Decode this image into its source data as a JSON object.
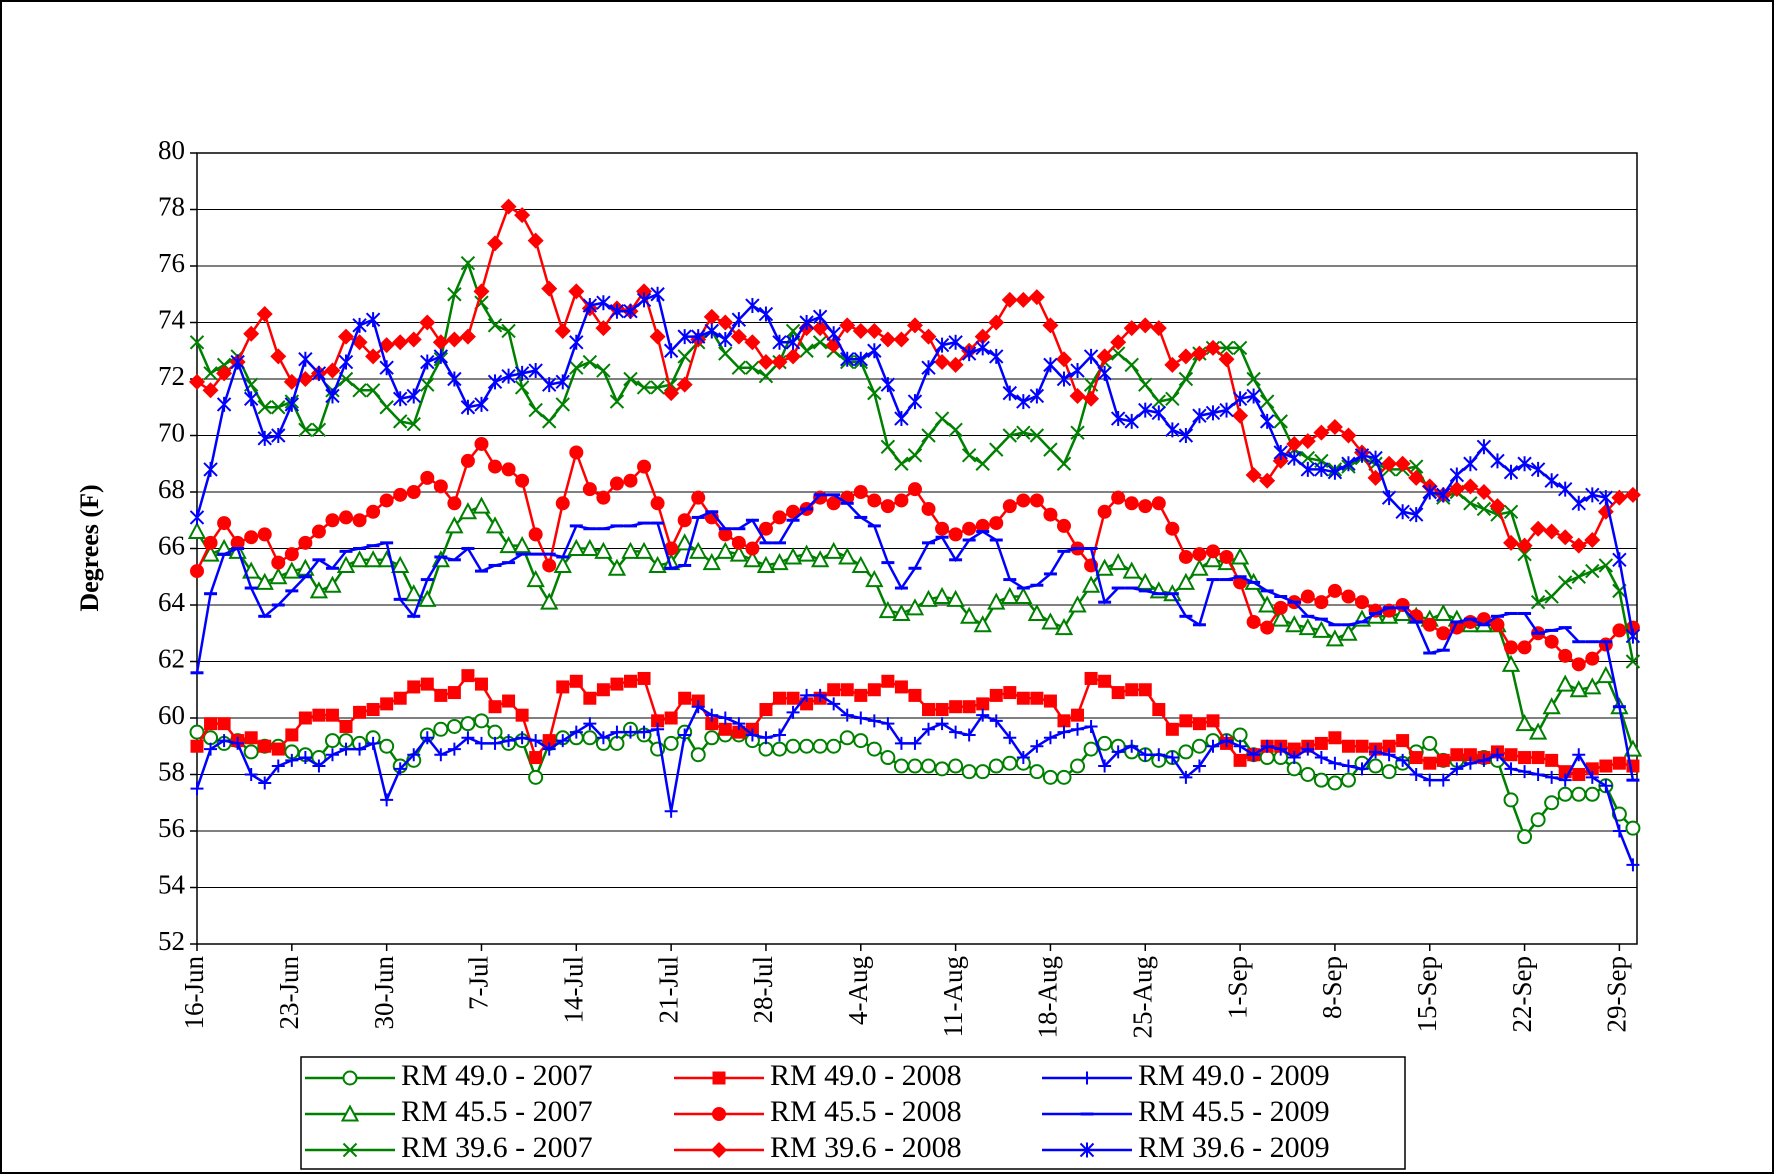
{
  "chart_data": {
    "type": "line",
    "ylabel": "Degrees (F)",
    "ylim": [
      52,
      80
    ],
    "yticks": [
      52,
      54,
      56,
      58,
      60,
      62,
      64,
      66,
      68,
      70,
      72,
      74,
      76,
      78,
      80
    ],
    "grid": true,
    "categories": [
      "16-Jun",
      null,
      null,
      null,
      null,
      null,
      null,
      "23-Jun",
      null,
      null,
      null,
      null,
      null,
      null,
      "30-Jun",
      null,
      null,
      null,
      null,
      null,
      null,
      "7-Jul",
      null,
      null,
      null,
      null,
      null,
      null,
      "14-Jul",
      null,
      null,
      null,
      null,
      null,
      null,
      "21-Jul",
      null,
      null,
      null,
      null,
      null,
      null,
      "28-Jul",
      null,
      null,
      null,
      null,
      null,
      null,
      "4-Aug",
      null,
      null,
      null,
      null,
      null,
      null,
      "11-Aug",
      null,
      null,
      null,
      null,
      null,
      null,
      "18-Aug",
      null,
      null,
      null,
      null,
      null,
      null,
      "25-Aug",
      null,
      null,
      null,
      null,
      null,
      null,
      "1-Sep",
      null,
      null,
      null,
      null,
      null,
      null,
      "8-Sep",
      null,
      null,
      null,
      null,
      null,
      null,
      "15-Sep",
      null,
      null,
      null,
      null,
      null,
      null,
      "22-Sep",
      null,
      null,
      null,
      null,
      null,
      null,
      "29-Sep",
      null
    ],
    "series": [
      {
        "name": "RM 49.0 - 2007",
        "color": "#008000",
        "marker": "circle-open",
        "values": [
          59.5,
          59.3,
          59.1,
          59.2,
          58.8,
          59.0,
          59.0,
          58.8,
          58.7,
          58.6,
          59.2,
          59.2,
          59.1,
          59.3,
          59.0,
          58.3,
          58.5,
          59.4,
          59.6,
          59.7,
          59.8,
          59.9,
          59.5,
          59.1,
          59.2,
          57.9,
          59.1,
          59.3,
          59.3,
          59.3,
          59.1,
          59.1,
          59.6,
          59.4,
          58.9,
          59.1,
          59.5,
          58.7,
          59.3,
          59.4,
          59.4,
          59.2,
          58.9,
          58.9,
          59.0,
          59.0,
          59.0,
          59.0,
          59.3,
          59.2,
          58.9,
          58.6,
          58.3,
          58.3,
          58.3,
          58.2,
          58.3,
          58.1,
          58.1,
          58.3,
          58.4,
          58.4,
          58.1,
          57.9,
          57.9,
          58.3,
          58.9,
          59.1,
          59.0,
          58.8,
          58.7,
          58.5,
          58.6,
          58.8,
          59.0,
          59.2,
          59.2,
          59.4,
          58.7,
          58.6,
          58.6,
          58.2,
          58.0,
          57.8,
          57.7,
          57.8,
          58.4,
          58.3,
          58.1,
          58.4,
          58.8,
          59.1,
          58.5,
          58.5,
          58.6,
          58.6,
          58.5,
          57.1,
          55.8,
          56.4,
          57.0,
          57.3,
          57.3,
          57.3,
          57.6,
          56.6,
          56.1
        ]
      },
      {
        "name": "RM 49.0 - 2008",
        "color": "#ff0000",
        "marker": "square",
        "values": [
          59.0,
          59.8,
          59.8,
          59.2,
          59.3,
          59.0,
          58.9,
          59.4,
          60.0,
          60.1,
          60.1,
          59.7,
          60.2,
          60.3,
          60.5,
          60.7,
          61.1,
          61.2,
          60.8,
          60.9,
          61.5,
          61.2,
          60.4,
          60.6,
          60.1,
          58.6,
          59.2,
          61.1,
          61.3,
          60.7,
          61.0,
          61.2,
          61.3,
          61.4,
          59.9,
          60.0,
          60.7,
          60.6,
          59.8,
          59.6,
          59.5,
          59.6,
          60.3,
          60.7,
          60.7,
          60.5,
          60.7,
          61.0,
          61.0,
          60.8,
          61.0,
          61.3,
          61.1,
          60.8,
          60.3,
          60.3,
          60.4,
          60.4,
          60.5,
          60.8,
          60.9,
          60.7,
          60.7,
          60.6,
          59.9,
          60.1,
          61.4,
          61.3,
          60.9,
          61.0,
          61.0,
          60.3,
          59.6,
          59.9,
          59.8,
          59.9,
          59.1,
          58.5,
          58.7,
          59.0,
          59.0,
          58.9,
          59.0,
          59.1,
          59.3,
          59.0,
          59.0,
          58.9,
          59.0,
          59.2,
          58.6,
          58.4,
          58.5,
          58.7,
          58.7,
          58.6,
          58.8,
          58.7,
          58.6,
          58.6,
          58.5,
          58.1,
          58.0,
          58.2,
          58.3,
          58.4,
          58.3
        ]
      },
      {
        "name": "RM 49.0 - 2009",
        "color": "#0000ff",
        "marker": "plus",
        "values": [
          57.5,
          58.9,
          59.2,
          59.1,
          58.0,
          57.7,
          58.3,
          58.5,
          58.6,
          58.3,
          58.7,
          58.9,
          58.9,
          59.1,
          57.1,
          58.2,
          58.7,
          59.3,
          58.7,
          58.9,
          59.3,
          59.1,
          59.1,
          59.2,
          59.3,
          59.2,
          58.9,
          59.2,
          59.5,
          59.8,
          59.3,
          59.5,
          59.5,
          59.5,
          59.6,
          56.7,
          59.4,
          60.4,
          60.1,
          60.0,
          59.8,
          59.4,
          59.3,
          59.4,
          60.2,
          60.8,
          60.8,
          60.5,
          60.1,
          60.0,
          59.9,
          59.8,
          59.1,
          59.1,
          59.6,
          59.8,
          59.5,
          59.4,
          60.1,
          59.9,
          59.3,
          58.6,
          59.0,
          59.3,
          59.5,
          59.6,
          59.7,
          58.3,
          58.8,
          59.0,
          58.7,
          58.7,
          58.6,
          57.9,
          58.3,
          59.0,
          59.2,
          59.0,
          58.7,
          59.0,
          58.9,
          58.6,
          58.9,
          58.6,
          58.4,
          58.3,
          58.2,
          58.8,
          58.7,
          58.5,
          58.0,
          57.8,
          57.8,
          58.2,
          58.4,
          58.5,
          58.7,
          58.2,
          58.1,
          58.0,
          57.9,
          57.8,
          58.7,
          57.9,
          57.6,
          56.0,
          54.8
        ]
      },
      {
        "name": "RM 45.5 - 2007",
        "color": "#008000",
        "marker": "triangle-open",
        "values": [
          66.6,
          65.8,
          66.0,
          65.9,
          65.2,
          64.8,
          65.0,
          65.2,
          65.3,
          64.5,
          64.7,
          65.4,
          65.6,
          65.6,
          65.6,
          65.4,
          64.4,
          64.2,
          65.6,
          66.8,
          67.3,
          67.5,
          66.8,
          66.1,
          66.1,
          64.9,
          64.1,
          65.4,
          66.0,
          66.0,
          65.9,
          65.3,
          65.9,
          65.9,
          65.4,
          65.5,
          66.2,
          65.9,
          65.5,
          65.9,
          65.8,
          65.6,
          65.4,
          65.5,
          65.7,
          65.8,
          65.6,
          65.9,
          65.7,
          65.4,
          64.9,
          63.8,
          63.7,
          63.9,
          64.2,
          64.3,
          64.2,
          63.6,
          63.3,
          64.1,
          64.3,
          64.3,
          63.7,
          63.4,
          63.2,
          64.0,
          64.7,
          65.3,
          65.5,
          65.2,
          64.8,
          64.5,
          64.4,
          64.8,
          65.3,
          65.6,
          65.5,
          65.7,
          64.8,
          64.0,
          63.5,
          63.3,
          63.2,
          63.1,
          62.8,
          63.0,
          63.5,
          63.6,
          63.6,
          63.7,
          63.6,
          63.5,
          63.7,
          63.5,
          63.3,
          63.3,
          63.3,
          61.9,
          59.8,
          59.5,
          60.4,
          61.2,
          61.0,
          61.1,
          61.5,
          60.4,
          58.9
        ]
      },
      {
        "name": "RM 45.5 - 2008",
        "color": "#ff0000",
        "marker": "circle",
        "values": [
          65.2,
          66.2,
          66.9,
          66.2,
          66.4,
          66.5,
          65.5,
          65.8,
          66.2,
          66.6,
          67.0,
          67.1,
          67.0,
          67.3,
          67.7,
          67.9,
          68.0,
          68.5,
          68.2,
          67.6,
          69.1,
          69.7,
          68.9,
          68.8,
          68.4,
          66.5,
          65.4,
          67.6,
          69.4,
          68.1,
          67.8,
          68.3,
          68.4,
          68.9,
          67.6,
          66.0,
          67.0,
          67.8,
          67.1,
          66.5,
          66.2,
          66.0,
          66.7,
          67.1,
          67.3,
          67.4,
          67.8,
          67.6,
          67.8,
          68.0,
          67.7,
          67.5,
          67.7,
          68.1,
          67.4,
          66.7,
          66.5,
          66.7,
          66.8,
          66.9,
          67.5,
          67.7,
          67.7,
          67.2,
          66.8,
          66.0,
          65.4,
          67.3,
          67.8,
          67.6,
          67.5,
          67.6,
          66.7,
          65.7,
          65.8,
          65.9,
          65.7,
          64.8,
          63.4,
          63.2,
          63.9,
          64.1,
          64.3,
          64.1,
          64.5,
          64.3,
          64.1,
          63.8,
          63.8,
          64.0,
          63.6,
          63.3,
          63.0,
          63.2,
          63.4,
          63.5,
          63.3,
          62.5,
          62.5,
          63.0,
          62.7,
          62.2,
          61.9,
          62.1,
          62.6,
          63.1,
          63.2
        ]
      },
      {
        "name": "RM 45.5 - 2009",
        "color": "#0000ff",
        "marker": "dash",
        "values": [
          61.6,
          64.4,
          65.8,
          66.0,
          64.6,
          63.6,
          64.0,
          64.5,
          65.0,
          65.6,
          65.3,
          65.9,
          66.0,
          66.1,
          66.2,
          64.2,
          63.6,
          64.9,
          65.7,
          65.6,
          66.0,
          65.2,
          65.4,
          65.5,
          65.8,
          65.8,
          65.8,
          65.7,
          66.8,
          66.7,
          66.7,
          66.8,
          66.8,
          66.9,
          66.9,
          65.3,
          65.4,
          67.1,
          67.3,
          66.7,
          66.7,
          67.0,
          66.2,
          66.2,
          67.0,
          67.4,
          67.9,
          67.9,
          67.6,
          67.1,
          66.8,
          65.5,
          64.6,
          65.3,
          66.2,
          66.4,
          65.6,
          66.3,
          66.6,
          66.3,
          64.9,
          64.6,
          64.7,
          65.1,
          65.9,
          66.0,
          66.0,
          64.1,
          64.6,
          64.6,
          64.5,
          64.4,
          64.4,
          63.6,
          63.3,
          64.9,
          64.9,
          65.0,
          64.8,
          64.5,
          64.3,
          64.1,
          63.6,
          63.5,
          63.3,
          63.3,
          63.4,
          63.7,
          63.9,
          63.9,
          63.4,
          62.3,
          62.4,
          63.4,
          63.5,
          63.3,
          63.6,
          63.7,
          63.7,
          63.0,
          63.1,
          63.2,
          62.7,
          62.7,
          62.7,
          60.4,
          57.8
        ]
      },
      {
        "name": "RM 39.6 - 2007",
        "color": "#008000",
        "marker": "x",
        "values": [
          73.3,
          72.2,
          72.5,
          72.8,
          71.8,
          71.0,
          71.0,
          71.2,
          70.2,
          70.2,
          71.6,
          72.0,
          71.6,
          71.6,
          71.0,
          70.5,
          70.4,
          71.8,
          72.7,
          75.0,
          76.1,
          74.7,
          73.9,
          73.7,
          71.7,
          70.9,
          70.5,
          71.1,
          72.4,
          72.6,
          72.3,
          71.2,
          72.0,
          71.7,
          71.7,
          71.8,
          72.8,
          73.3,
          73.7,
          72.9,
          72.4,
          72.4,
          72.1,
          72.6,
          73.7,
          73.0,
          73.3,
          73.0,
          72.6,
          72.6,
          71.5,
          69.6,
          69.0,
          69.3,
          70.0,
          70.6,
          70.2,
          69.3,
          69.0,
          69.5,
          70.0,
          70.1,
          70.0,
          69.5,
          69.0,
          70.1,
          71.8,
          72.6,
          72.9,
          72.5,
          71.8,
          71.2,
          71.3,
          72.0,
          72.9,
          73.1,
          73.1,
          73.1,
          72.0,
          71.2,
          70.5,
          69.5,
          69.2,
          69.1,
          68.8,
          68.9,
          69.2,
          69.0,
          68.8,
          68.8,
          68.9,
          68.0,
          67.8,
          68.0,
          67.6,
          67.4,
          67.2,
          67.3,
          65.8,
          64.1,
          64.3,
          64.8,
          65.0,
          65.2,
          65.4,
          64.5,
          62.0
        ]
      },
      {
        "name": "RM 39.6 - 2008",
        "color": "#ff0000",
        "marker": "diamond",
        "values": [
          71.9,
          71.6,
          72.2,
          72.6,
          73.6,
          74.3,
          72.8,
          71.9,
          72.0,
          72.2,
          72.3,
          73.5,
          73.3,
          72.8,
          73.2,
          73.3,
          73.4,
          74.0,
          73.3,
          73.4,
          73.5,
          75.1,
          76.8,
          78.1,
          77.8,
          76.9,
          75.2,
          73.7,
          75.1,
          74.5,
          73.8,
          74.5,
          74.4,
          75.1,
          73.5,
          71.5,
          71.8,
          73.4,
          74.2,
          74.0,
          73.5,
          73.3,
          72.6,
          72.6,
          72.8,
          73.8,
          73.8,
          73.2,
          73.9,
          73.7,
          73.7,
          73.4,
          73.4,
          73.9,
          73.5,
          72.6,
          72.5,
          73.0,
          73.5,
          74.0,
          74.8,
          74.8,
          74.9,
          73.9,
          72.7,
          71.4,
          71.3,
          72.8,
          73.3,
          73.8,
          73.9,
          73.8,
          72.5,
          72.8,
          72.9,
          73.1,
          72.7,
          70.7,
          68.6,
          68.4,
          69.1,
          69.7,
          69.8,
          70.1,
          70.3,
          70.0,
          69.4,
          68.5,
          69.0,
          69.0,
          68.5,
          68.2,
          67.9,
          68.1,
          68.2,
          68.0,
          67.5,
          66.2,
          66.1,
          66.7,
          66.6,
          66.4,
          66.1,
          66.3,
          67.3,
          67.8,
          67.9
        ]
      },
      {
        "name": "RM 39.6 - 2009",
        "color": "#0000ff",
        "marker": "star",
        "values": [
          67.1,
          68.8,
          71.1,
          72.6,
          71.3,
          69.9,
          70.0,
          71.1,
          72.7,
          72.2,
          71.4,
          72.6,
          73.9,
          74.1,
          72.4,
          71.3,
          71.4,
          72.6,
          72.8,
          72.0,
          71.0,
          71.1,
          71.9,
          72.1,
          72.2,
          72.3,
          71.8,
          71.9,
          73.3,
          74.6,
          74.7,
          74.4,
          74.4,
          74.8,
          75.0,
          73.0,
          73.5,
          73.5,
          73.7,
          73.4,
          74.1,
          74.6,
          74.3,
          73.3,
          73.3,
          74.0,
          74.2,
          73.6,
          72.7,
          72.7,
          73.0,
          71.8,
          70.6,
          71.2,
          72.4,
          73.2,
          73.3,
          72.9,
          73.1,
          72.8,
          71.5,
          71.2,
          71.4,
          72.5,
          72.0,
          72.3,
          72.8,
          72.2,
          70.6,
          70.5,
          70.9,
          70.8,
          70.2,
          70.0,
          70.7,
          70.8,
          70.9,
          71.3,
          71.4,
          70.5,
          69.4,
          69.2,
          68.8,
          68.8,
          68.7,
          69.0,
          69.3,
          69.2,
          67.8,
          67.3,
          67.2,
          68.0,
          67.9,
          68.6,
          69.0,
          69.6,
          69.1,
          68.7,
          69.0,
          68.8,
          68.4,
          68.1,
          67.6,
          67.9,
          67.8,
          65.6,
          62.9
        ]
      }
    ]
  }
}
